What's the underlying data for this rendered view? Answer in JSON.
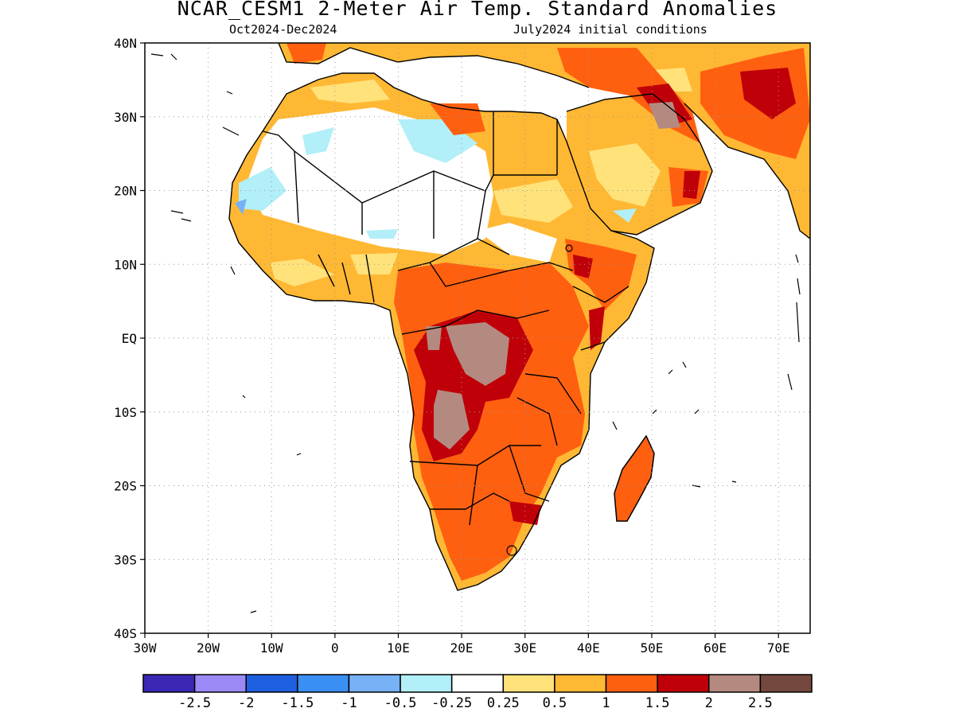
{
  "title": "NCAR_CESM1 2-Meter Air Temp. Standard Anomalies",
  "subtitle_left": "Oct2024-Dec2024",
  "subtitle_right": "July2024 initial conditions",
  "map": {
    "region": "Africa",
    "lat_labels": [
      "40N",
      "30N",
      "20N",
      "10N",
      "EQ",
      "10S",
      "20S",
      "30S",
      "40S"
    ],
    "lon_labels": [
      "30W",
      "20W",
      "10W",
      "0",
      "10E",
      "20E",
      "30E",
      "40E",
      "50E",
      "60E",
      "70E"
    ],
    "lat_range": [
      -40,
      40
    ],
    "lon_range": [
      -30,
      75
    ],
    "grid": "dotted"
  },
  "colorbar": {
    "colors": [
      "#3a27b5",
      "#9b89f5",
      "#1e5fe0",
      "#3a8ff2",
      "#76b2f5",
      "#b2eff8",
      "#ffffff",
      "#ffe27a",
      "#ffb833",
      "#ff6010",
      "#c00008",
      "#b48a80",
      "#74483e"
    ],
    "labels": [
      "-2.5",
      "-2",
      "-1.5",
      "-1",
      "-0.5",
      "-0.25",
      "0.25",
      "0.5",
      "1",
      "1.5",
      "2",
      "2.5"
    ]
  }
}
